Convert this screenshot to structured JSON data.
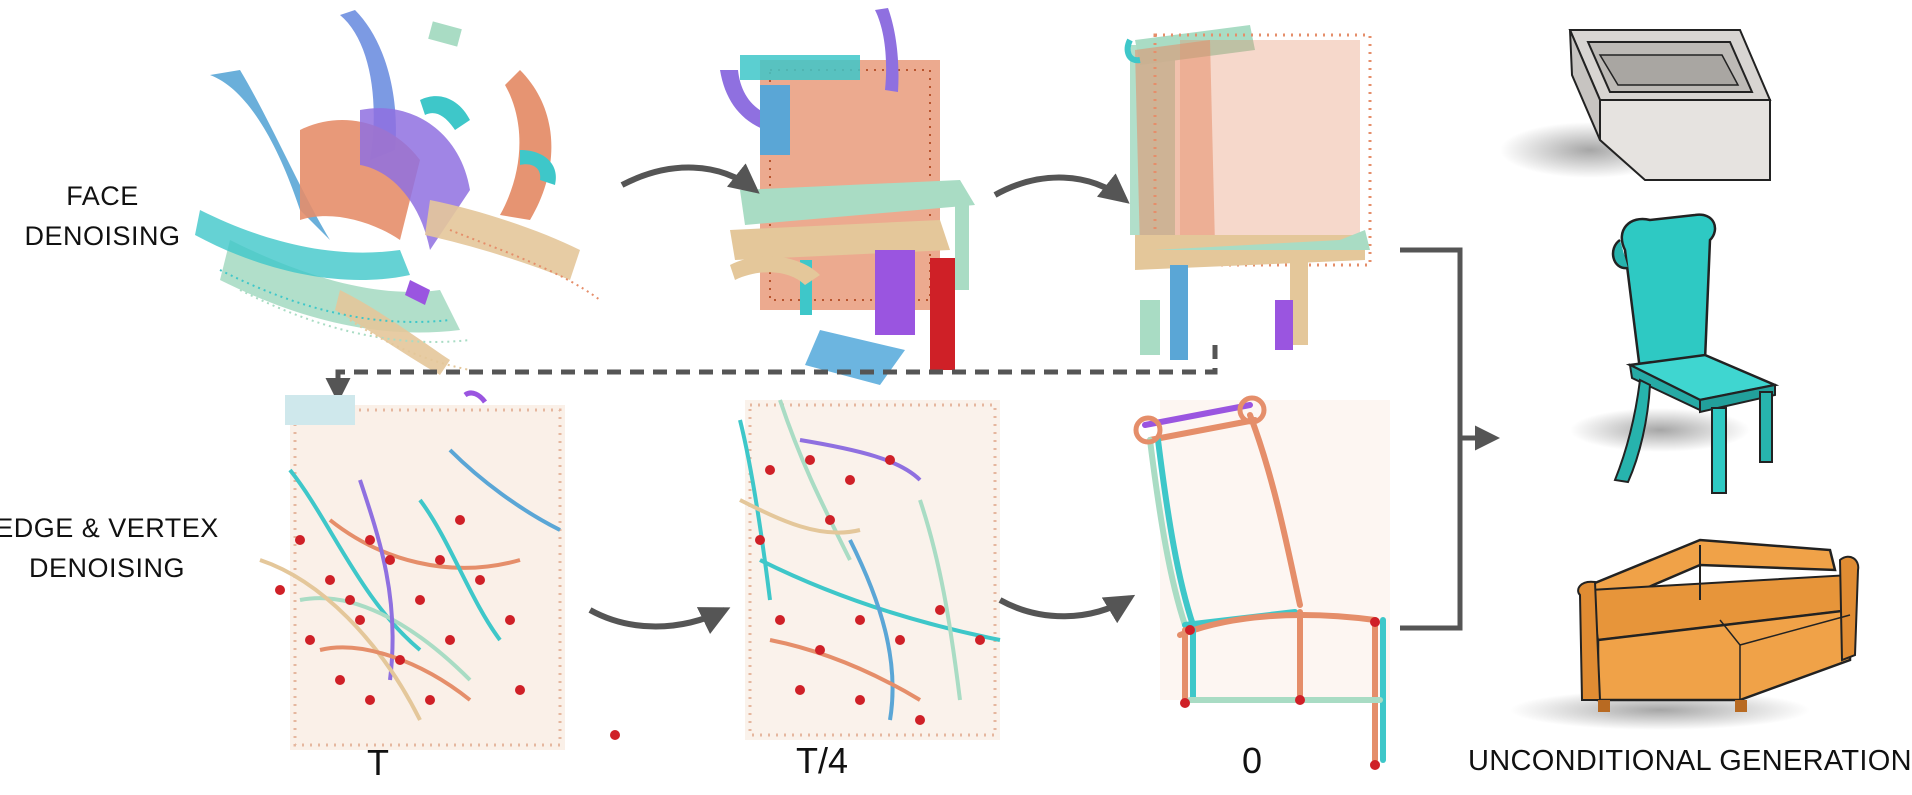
{
  "rows": {
    "face": {
      "line1": "FACE",
      "line2": "DENOISING"
    },
    "edge": {
      "line1": "EDGE & VERTEX",
      "line2": "DENOISING"
    }
  },
  "steps": {
    "t": "T",
    "t_quarter": "T/4",
    "zero": "0"
  },
  "output": {
    "label": "UNCONDITIONAL GENERATION",
    "items": [
      "bathtub",
      "chair",
      "sofa"
    ]
  },
  "colors": {
    "teal": "#3ec7c9",
    "salmon": "#e58e6a",
    "blue": "#5aa6d6",
    "mint": "#a9dcc4",
    "tan": "#e4c79a",
    "purple": "#9a55e0",
    "red": "#cf2027",
    "orange": "#ec9b3f",
    "arrow": "#555555"
  }
}
